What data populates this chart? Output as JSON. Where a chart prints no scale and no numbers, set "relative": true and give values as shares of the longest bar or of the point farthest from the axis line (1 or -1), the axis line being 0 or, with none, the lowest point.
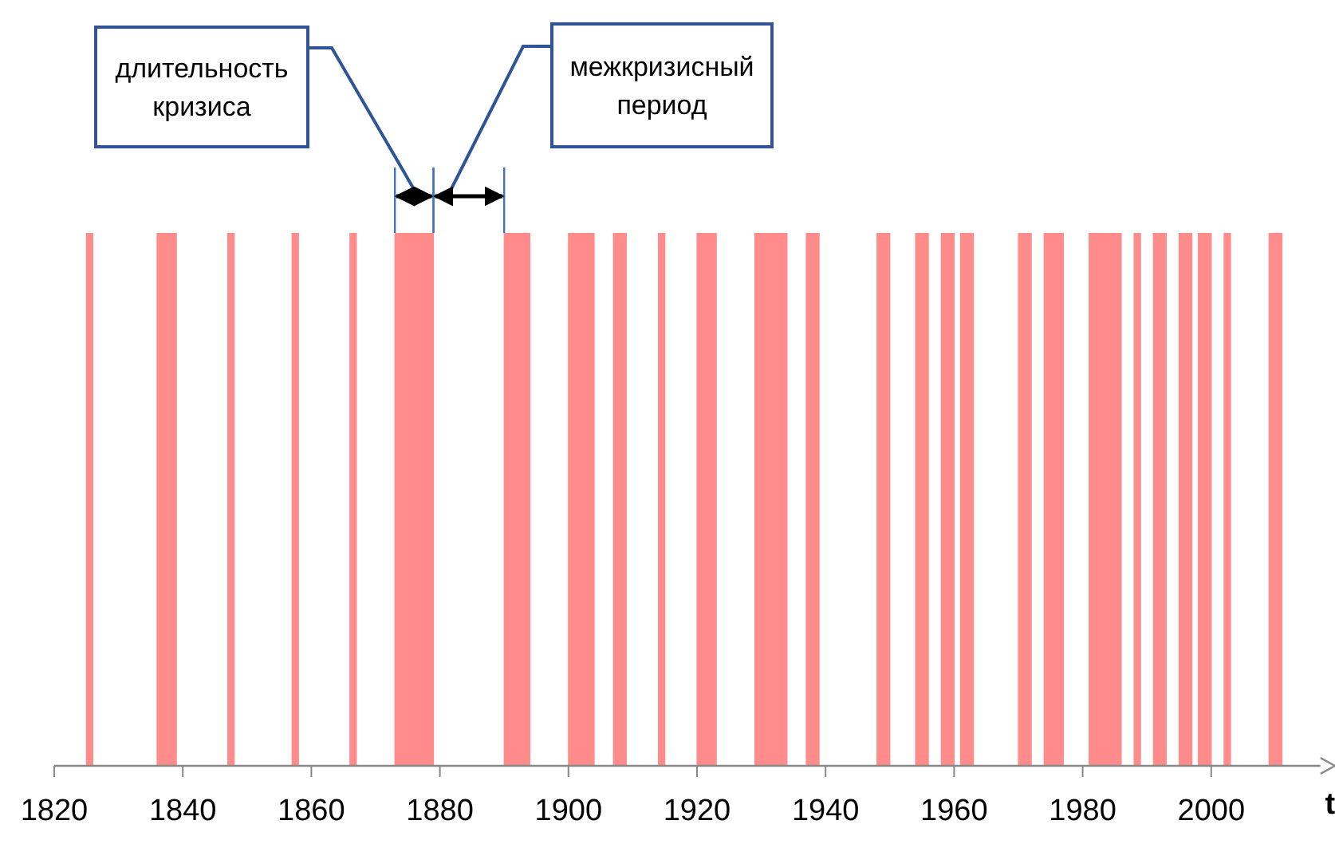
{
  "chart_data": {
    "type": "bar",
    "relative": true,
    "xlabel": "t",
    "xlim": [
      1820,
      2017
    ],
    "xticks": [
      1820,
      1840,
      1860,
      1880,
      1900,
      1920,
      1940,
      1960,
      1980,
      2000
    ],
    "color": "#ff8b8b",
    "x": [
      1825.5,
      1836.5,
      1837.5,
      1838.5,
      1847.5,
      1857.5,
      1866.5,
      1873.5,
      1874.5,
      1875.5,
      1876.5,
      1877.5,
      1878.5,
      1890.5,
      1891.5,
      1892.5,
      1893.5,
      1900.5,
      1901.5,
      1902.5,
      1903.5,
      1907.5,
      1908.5,
      1914.5,
      1920.5,
      1921.5,
      1922.5,
      1929.5,
      1930.5,
      1931.5,
      1932.5,
      1933.5,
      1937.5,
      1938.5,
      1948.5,
      1949.5,
      1954.5,
      1955.5,
      1958.5,
      1959.5,
      1961.5,
      1962.5,
      1970.5,
      1971.5,
      1974.5,
      1975.5,
      1976.5,
      1981.5,
      1982.5,
      1983.5,
      1984.5,
      1985.5,
      1988.5,
      1991.5,
      1992.5,
      1995.5,
      1996.5,
      1998.5,
      1999.5,
      2002.5,
      2009.5,
      2010.5
    ],
    "values": [
      1,
      1,
      1,
      1,
      1,
      1,
      1,
      1,
      1,
      1,
      1,
      1,
      1,
      1,
      1,
      1,
      1,
      1,
      1,
      1,
      1,
      1,
      1,
      1,
      1,
      1,
      1,
      1,
      1,
      1,
      1,
      1,
      1,
      1,
      1,
      1,
      1,
      1,
      1,
      1,
      1,
      1,
      1,
      1,
      1,
      1,
      1,
      1,
      1,
      1,
      1,
      1,
      1,
      1,
      1,
      1,
      1,
      1,
      1,
      1,
      1,
      1
    ],
    "annotations": [
      "длительность\nкризиса",
      "межкризисный\nпериод"
    ]
  }
}
